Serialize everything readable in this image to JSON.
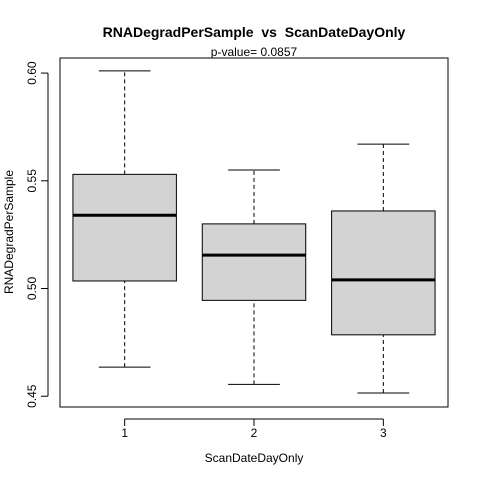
{
  "chart_data": {
    "type": "boxplot",
    "title": "RNADegradPerSample  vs  ScanDateDayOnly",
    "subtitle": "p-value= 0.0857",
    "xlabel": "ScanDateDayOnly",
    "ylabel": "RNADegradPerSample",
    "categories": [
      "1",
      "2",
      "3"
    ],
    "ylim": [
      0.445,
      0.607
    ],
    "yticks": [
      0.45,
      0.5,
      0.55,
      0.6
    ],
    "ytick_labels": [
      "0.45",
      "0.50",
      "0.55",
      "0.60"
    ],
    "box_fill": "#d3d3d3",
    "boxes": [
      {
        "category": "1",
        "whisker_low": 0.4635,
        "q1": 0.5035,
        "median": 0.534,
        "q3": 0.553,
        "whisker_high": 0.601
      },
      {
        "category": "2",
        "whisker_low": 0.4555,
        "q1": 0.4945,
        "median": 0.5155,
        "q3": 0.53,
        "whisker_high": 0.555
      },
      {
        "category": "3",
        "whisker_low": 0.4515,
        "q1": 0.4785,
        "median": 0.504,
        "q3": 0.536,
        "whisker_high": 0.567
      }
    ]
  }
}
